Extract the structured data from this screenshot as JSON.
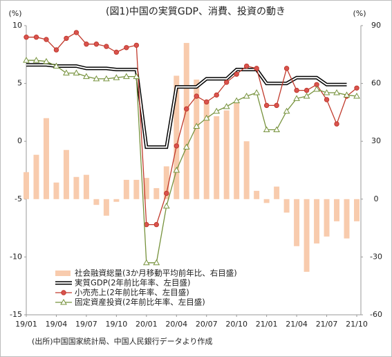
{
  "chart_data": {
    "type": "combo",
    "title": "(図1)中国の実質GDP、消費、投資の動き",
    "y_label": "(%)",
    "y2_label": "(%)",
    "note": "(出所)中国国家統計局、中国人民銀行データより作成",
    "categories": [
      "19/01",
      null,
      null,
      "19/04",
      null,
      null,
      "19/07",
      null,
      null,
      "19/10",
      null,
      null,
      "20/01",
      null,
      null,
      "20/04",
      null,
      null,
      "20/07",
      null,
      null,
      "20/10",
      null,
      null,
      "21/01",
      null,
      null,
      "21/04",
      null,
      null,
      "21/07",
      null,
      null,
      "21/10"
    ],
    "ylim": [
      -15,
      10
    ],
    "yticks": [
      -15,
      -10,
      -5,
      0,
      5,
      10
    ],
    "y2lim": [
      -60,
      90
    ],
    "y2ticks": [
      -60,
      -30,
      0,
      30,
      60,
      90
    ],
    "grid": false,
    "legend": "lower left",
    "series": [
      {
        "name": "社会融資総量(3か月移動平均前年比、右目盛)",
        "type": "bar",
        "axis": "y2",
        "color": "#f8cbad",
        "values": [
          14,
          23,
          42,
          8.6,
          25.5,
          11.5,
          12.6,
          -3,
          -8.6,
          -1.4,
          10,
          10,
          11,
          5.7,
          17,
          64,
          81,
          62,
          51,
          43,
          46,
          50,
          30,
          4.3,
          -2,
          6.5,
          -7,
          -24.4,
          -37.7,
          -23,
          -19.4,
          -11.5,
          -20.4,
          -11.5
        ]
      },
      {
        "name": "実質GDP(2年前比年率、左目盛)",
        "type": "step",
        "axis": "y",
        "color": "#000000",
        "values": [
          6.6,
          6.6,
          6.6,
          6.5,
          6.5,
          6.5,
          6.3,
          6.3,
          6.3,
          6.2,
          6.2,
          6.2,
          -0.5,
          -0.5,
          -0.5,
          4.7,
          4.7,
          4.7,
          5.4,
          5.4,
          5.4,
          6.2,
          6.2,
          6.2,
          5.0,
          5.0,
          5.0,
          5.5,
          5.5,
          5.5,
          4.9,
          4.9,
          4.9,
          null
        ]
      },
      {
        "name": "小売売上(2年前比年率、左目盛)",
        "type": "line-circle",
        "axis": "y",
        "color": "#c0392b",
        "values": [
          9.0,
          9.0,
          8.8,
          7.9,
          8.9,
          9.4,
          8.4,
          8.4,
          8.2,
          7.7,
          8.1,
          8.3,
          -7.2,
          -7.2,
          -4.5,
          -0.4,
          2.8,
          3.9,
          3.4,
          4.0,
          5.1,
          5.8,
          6.5,
          6.3,
          3.1,
          3.1,
          6.3,
          4.4,
          4.4,
          4.9,
          3.6,
          1.5,
          3.9,
          4.6
        ]
      },
      {
        "name": "固定資産投資(2年前比年率、左目盛)",
        "type": "line-triangle",
        "axis": "y",
        "color": "#76923c",
        "values": [
          7.0,
          7.0,
          6.9,
          6.5,
          5.9,
          5.9,
          5.6,
          5.4,
          5.4,
          5.5,
          5.6,
          5.6,
          -10.5,
          -10.5,
          -5.6,
          -2.5,
          -0.5,
          1.3,
          2.0,
          2.6,
          3.0,
          3.5,
          3.9,
          4.2,
          1.0,
          1.0,
          2.6,
          3.7,
          3.9,
          4.5,
          4.2,
          4.2,
          4.0,
          3.9
        ]
      }
    ]
  }
}
